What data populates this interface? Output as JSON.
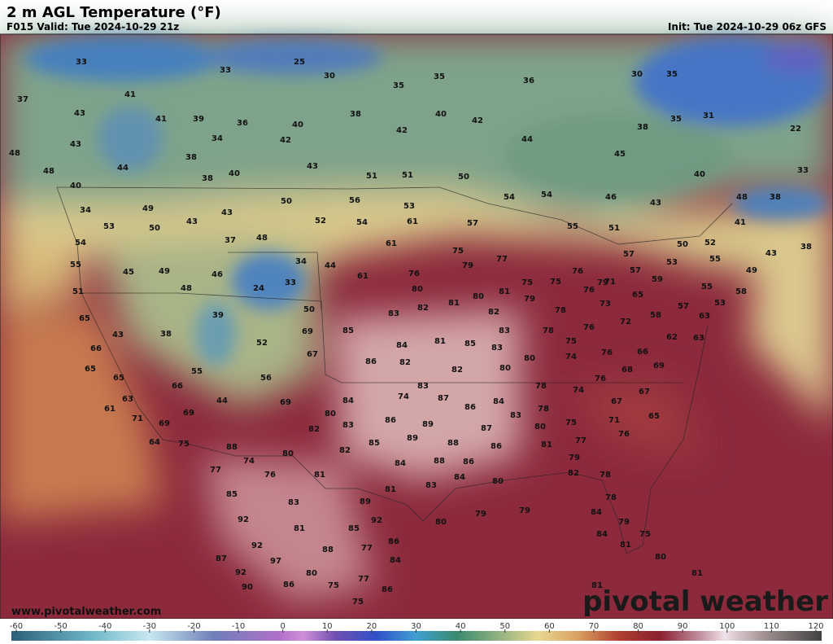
{
  "header": {
    "title": "2 m AGL Temperature (°F)",
    "valid": "F015 Valid: Tue 2024-10-29 21z",
    "init": "Init: Tue 2024-10-29 06z GFS"
  },
  "map": {
    "temperatures": [
      33,
      25,
      33,
      30,
      35,
      35,
      36,
      30,
      35,
      37,
      41,
      43,
      41,
      39,
      36,
      40,
      38,
      40,
      42,
      42,
      34,
      42,
      38,
      35,
      31,
      22,
      43,
      38,
      44,
      40,
      38,
      43,
      51,
      51,
      50,
      44,
      45,
      40,
      33,
      48,
      48,
      40,
      50,
      56,
      53,
      54,
      54,
      46,
      43,
      48,
      38,
      34,
      49,
      43,
      52,
      54,
      61,
      57,
      43,
      53,
      50,
      55,
      51,
      41,
      54,
      37,
      48,
      61,
      75,
      57,
      50,
      52,
      55,
      43,
      38,
      55,
      45,
      49,
      46,
      34,
      44,
      76,
      79,
      77,
      76,
      57,
      53,
      49,
      59,
      51,
      48,
      24,
      33,
      61,
      80,
      81,
      80,
      81,
      75,
      75,
      76,
      79,
      65,
      55,
      58,
      53,
      71,
      65,
      39,
      50,
      83,
      82,
      82,
      79,
      78,
      73,
      58,
      57,
      63,
      43,
      38,
      69,
      85,
      83,
      78,
      76,
      72,
      75,
      62,
      63,
      66,
      52,
      67,
      86,
      84,
      81,
      85,
      83,
      80,
      74,
      76,
      66,
      65,
      65,
      55,
      56,
      82,
      82,
      80,
      78,
      76,
      68,
      69,
      66,
      63,
      44,
      69,
      84,
      74,
      83,
      87,
      86,
      84,
      74,
      78,
      67,
      67,
      61,
      71,
      69,
      69,
      80,
      82,
      83,
      86,
      89,
      83,
      80,
      75,
      71,
      65,
      64,
      75,
      88,
      80,
      82,
      85,
      89,
      88,
      87,
      86,
      81,
      77,
      76,
      77,
      74,
      76,
      81,
      84,
      88,
      86,
      84,
      83,
      80,
      82,
      79,
      78,
      85,
      83,
      81,
      89,
      80,
      79,
      79,
      78,
      92,
      92,
      81,
      85,
      84,
      79,
      84,
      75,
      92,
      86,
      88,
      77,
      81,
      87,
      97,
      84,
      80,
      92,
      80,
      77,
      81,
      90,
      86,
      75,
      86,
      81,
      75
    ]
  },
  "colorbar": {
    "ticks": [
      -60,
      -50,
      -40,
      -30,
      -20,
      -10,
      0,
      10,
      20,
      30,
      40,
      50,
      60,
      70,
      80,
      90,
      100,
      110,
      120
    ]
  },
  "footer": {
    "url": "www.pivotalweather.com",
    "brand": "pivotal weather"
  }
}
